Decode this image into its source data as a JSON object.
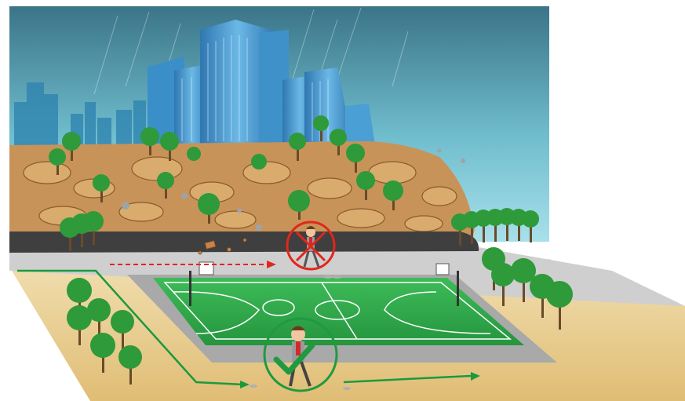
{
  "scene": {
    "description_free": true,
    "colors": {
      "sky_top": "#3d7f97",
      "sky_bottom": "#8fd3e0",
      "buildings": "#3e92c9",
      "building_light": "#7cc2ea",
      "skyline_back": "#2f7fa8",
      "slope": "#c9955a",
      "slope_dark": "#8a5a2c",
      "tree_green": "#2e9a3a",
      "tree_trunk": "#6b4a2a",
      "road": "#3f3f3f",
      "sidewalk": "#cfcfcf",
      "ground": "#e5c889",
      "court": "#2fa84a",
      "court_lines": "#ffffff",
      "path_green": "#1a9a3e",
      "forbidden_red": "#e1261c",
      "allowed_green": "#1f9a3e"
    },
    "icons": {
      "forbidden": "cross-circle-icon",
      "allowed": "check-circle-icon"
    }
  }
}
